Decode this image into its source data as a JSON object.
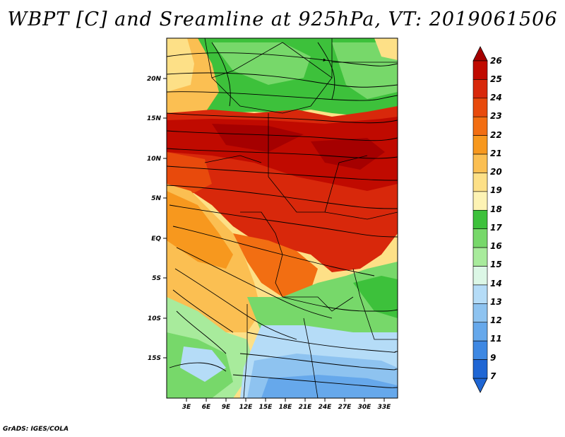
{
  "title": "WBPT [C] and Sreamline at 925hPa, VT: 2019061506",
  "credit": "GrADS: IGES/COLA",
  "map": {
    "lat_range": [
      -20,
      25
    ],
    "lon_range": [
      0,
      35
    ],
    "lat_ticks": [
      {
        "value": 20,
        "label": "20N"
      },
      {
        "value": 15,
        "label": "15N"
      },
      {
        "value": 10,
        "label": "10N"
      },
      {
        "value": 5,
        "label": "5N"
      },
      {
        "value": 0,
        "label": "EQ"
      },
      {
        "value": -5,
        "label": "5S"
      },
      {
        "value": -10,
        "label": "10S"
      },
      {
        "value": -15,
        "label": "15S"
      }
    ],
    "lon_ticks": [
      {
        "value": 3,
        "label": "3E"
      },
      {
        "value": 6,
        "label": "6E"
      },
      {
        "value": 9,
        "label": "9E"
      },
      {
        "value": 12,
        "label": "12E"
      },
      {
        "value": 15,
        "label": "15E"
      },
      {
        "value": 18,
        "label": "18E"
      },
      {
        "value": 21,
        "label": "21E"
      },
      {
        "value": 24,
        "label": "24E"
      },
      {
        "value": 27,
        "label": "27E"
      },
      {
        "value": 30,
        "label": "30E"
      },
      {
        "value": 33,
        "label": "33E"
      }
    ]
  },
  "colorbar": {
    "levels": [
      {
        "label": "26",
        "color": "#a50000"
      },
      {
        "label": "25",
        "color": "#c00a00"
      },
      {
        "label": "24",
        "color": "#d8280b"
      },
      {
        "label": "23",
        "color": "#e84a0c"
      },
      {
        "label": "22",
        "color": "#f26e12"
      },
      {
        "label": "21",
        "color": "#f7981e"
      },
      {
        "label": "20",
        "color": "#fbbf52"
      },
      {
        "label": "19",
        "color": "#fde087"
      },
      {
        "label": "18",
        "color": "#fdf3b4"
      },
      {
        "label": "17",
        "color": "#3dc13b"
      },
      {
        "label": "16",
        "color": "#77d86a"
      },
      {
        "label": "15",
        "color": "#a8eb9c"
      },
      {
        "label": "14",
        "color": "#dcf7e6"
      },
      {
        "label": "13",
        "color": "#b5dcf7"
      },
      {
        "label": "12",
        "color": "#8ec3f0"
      },
      {
        "label": "11",
        "color": "#66a8eb"
      },
      {
        "label": "9",
        "color": "#3e88e3"
      },
      {
        "label": "7",
        "color": "#1f66d4"
      }
    ]
  }
}
